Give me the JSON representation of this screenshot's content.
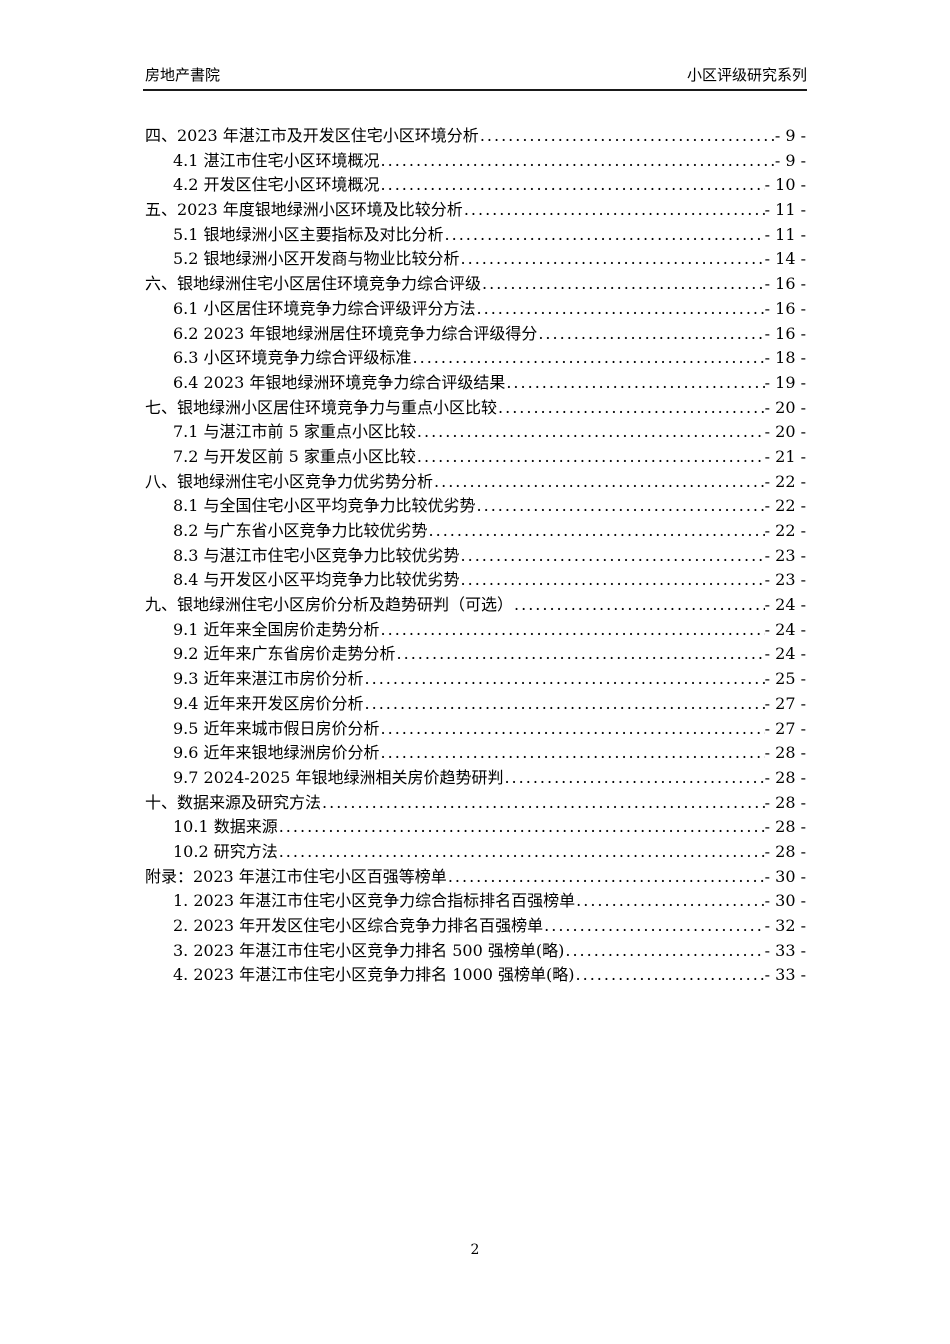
{
  "header": {
    "left": "房地产書院",
    "right": "小区评级研究系列"
  },
  "toc": {
    "entries": [
      {
        "level": 1,
        "title": "四、2023 年湛江市及开发区住宅小区环境分析",
        "page": "- 9 -"
      },
      {
        "level": 2,
        "title": "4.1 湛江市住宅小区环境概况",
        "page": "- 9 -"
      },
      {
        "level": 2,
        "title": "4.2 开发区住宅小区环境概况",
        "page": "- 10 -"
      },
      {
        "level": 1,
        "title": "五、2023 年度银地绿洲小区环境及比较分析",
        "page": "- 11 -"
      },
      {
        "level": 2,
        "title": "5.1 银地绿洲小区主要指标及对比分析",
        "page": "- 11 -"
      },
      {
        "level": 2,
        "title": "5.2 银地绿洲小区开发商与物业比较分析",
        "page": "- 14 -"
      },
      {
        "level": 1,
        "title": "六、银地绿洲住宅小区居住环境竞争力综合评级",
        "page": "- 16 -"
      },
      {
        "level": 2,
        "title": "6.1 小区居住环境竞争力综合评级评分方法",
        "page": "- 16 -"
      },
      {
        "level": 2,
        "title": "6.2 2023 年银地绿洲居住环境竞争力综合评级得分",
        "page": "- 16 -"
      },
      {
        "level": 2,
        "title": "6.3 小区环境竞争力综合评级标准",
        "page": "- 18 -"
      },
      {
        "level": 2,
        "title": "6.4 2023 年银地绿洲环境竞争力综合评级结果",
        "page": "- 19 -"
      },
      {
        "level": 1,
        "title": "七、银地绿洲小区居住环境竞争力与重点小区比较",
        "page": "- 20 -"
      },
      {
        "level": 2,
        "title": "7.1 与湛江市前 5 家重点小区比较",
        "page": "- 20 -"
      },
      {
        "level": 2,
        "title": "7.2 与开发区前 5 家重点小区比较",
        "page": "- 21 -"
      },
      {
        "level": 1,
        "title": "八、银地绿洲住宅小区竞争力优劣势分析",
        "page": "- 22 -"
      },
      {
        "level": 2,
        "title": "8.1 与全国住宅小区平均竞争力比较优劣势",
        "page": "- 22 -"
      },
      {
        "level": 2,
        "title": "8.2 与广东省小区竞争力比较优劣势",
        "page": "- 22 -"
      },
      {
        "level": 2,
        "title": "8.3 与湛江市住宅小区竞争力比较优劣势",
        "page": "- 23 -"
      },
      {
        "level": 2,
        "title": "8.4 与开发区小区平均竞争力比较优劣势",
        "page": "- 23 -"
      },
      {
        "level": 1,
        "title": "九、银地绿洲住宅小区房价分析及趋势研判（可选）",
        "page": "- 24 -"
      },
      {
        "level": 2,
        "title": "9.1 近年来全国房价走势分析",
        "page": "- 24 -"
      },
      {
        "level": 2,
        "title": "9.2 近年来广东省房价走势分析",
        "page": "- 24 -"
      },
      {
        "level": 2,
        "title": "9.3 近年来湛江市房价分析",
        "page": "- 25 -"
      },
      {
        "level": 2,
        "title": "9.4 近年来开发区房价分析",
        "page": "- 27 -"
      },
      {
        "level": 2,
        "title": "9.5 近年来城市假日房价分析",
        "page": "- 27 -"
      },
      {
        "level": 2,
        "title": "9.6 近年来银地绿洲房价分析",
        "page": "- 28 -"
      },
      {
        "level": 2,
        "title": "9.7 2024-2025 年银地绿洲相关房价趋势研判",
        "page": "- 28 -"
      },
      {
        "level": 1,
        "title": "十、数据来源及研究方法",
        "page": "- 28 -"
      },
      {
        "level": 2,
        "title": "10.1 数据来源",
        "page": "- 28 -"
      },
      {
        "level": 2,
        "title": "10.2 研究方法",
        "page": "- 28 -"
      },
      {
        "level": 1,
        "title": "附录：2023 年湛江市住宅小区百强等榜单",
        "page": "- 30 -"
      },
      {
        "level": 2,
        "title": "1. 2023 年湛江市住宅小区竞争力综合指标排名百强榜单",
        "page": "- 30 -"
      },
      {
        "level": 2,
        "title": "2. 2023 年开发区住宅小区综合竞争力排名百强榜单",
        "page": "- 32 -"
      },
      {
        "level": 2,
        "title": "3. 2023 年湛江市住宅小区竞争力排名 500 强榜单(略)",
        "page": "- 33 -"
      },
      {
        "level": 2,
        "title": "4. 2023 年湛江市住宅小区竞争力排名 1000 强榜单(略)",
        "page": "- 33 -"
      }
    ]
  },
  "footer": {
    "page_number": "2"
  }
}
